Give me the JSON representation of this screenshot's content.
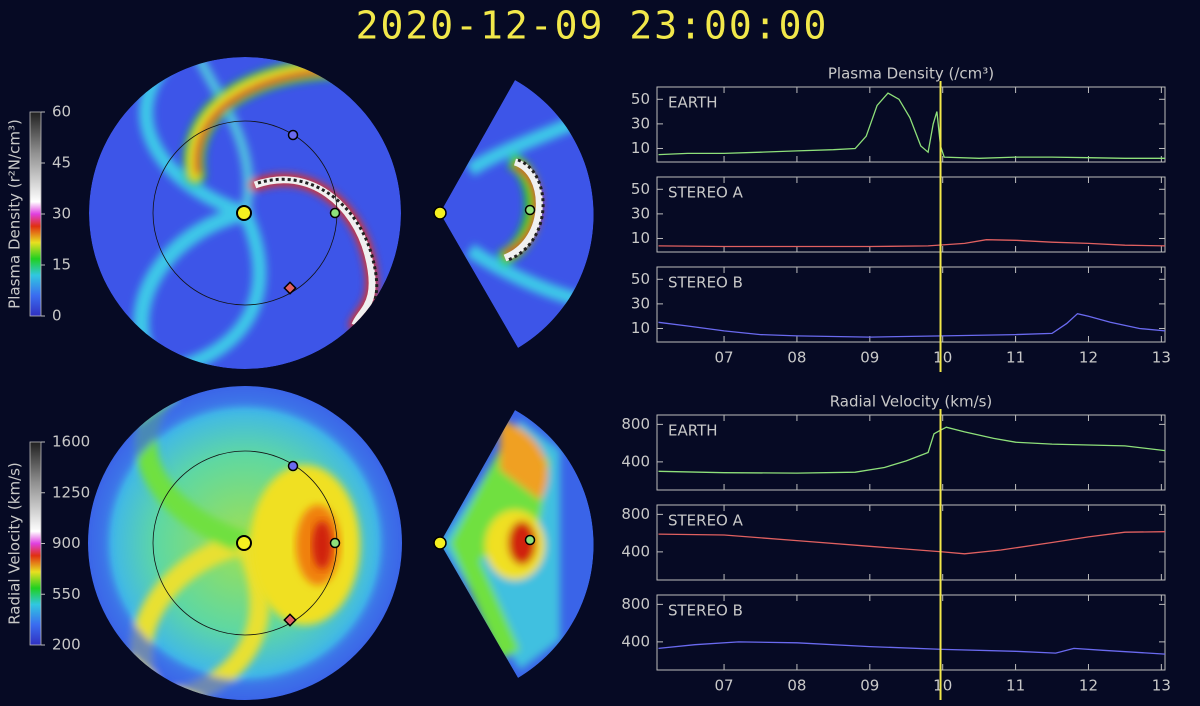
{
  "title": "2020-12-09 23:00:00",
  "chart_data": [
    {
      "type": "colorbar",
      "label": "Plasma Density (r²N/cm³)",
      "ylim": [
        0,
        60
      ],
      "yticks": [
        0,
        15,
        30,
        45,
        60
      ]
    },
    {
      "type": "colorbar",
      "label": "Radial Velocity (km/s)",
      "ylim": [
        200,
        1600
      ],
      "yticks": [
        200,
        550,
        900,
        1250,
        1600
      ]
    },
    {
      "type": "line",
      "title": "Plasma Density (/cm³)",
      "xlim": [
        6.08,
        13.05
      ],
      "xticks": [
        {
          "value": 7,
          "label": "07"
        },
        {
          "value": 8,
          "label": "08"
        },
        {
          "value": 9,
          "label": "09"
        },
        {
          "value": 10,
          "label": "10"
        },
        {
          "value": 11,
          "label": "11"
        },
        {
          "value": 12,
          "label": "12"
        },
        {
          "value": 13,
          "label": "13"
        }
      ],
      "ylim": [
        -1,
        60
      ],
      "yticks": [
        10,
        30,
        50
      ],
      "marker_x": 9.97,
      "marker_color": "#f2e84a",
      "series": [
        {
          "name": "EARTH",
          "color": "#8ee07a",
          "x": [
            6.1,
            6.5,
            7,
            7.5,
            8,
            8.5,
            8.8,
            8.95,
            9.1,
            9.25,
            9.4,
            9.55,
            9.7,
            9.8,
            9.87,
            9.92,
            9.97,
            10.02,
            10.5,
            11,
            11.5,
            12,
            12.5,
            13.05
          ],
          "values": [
            5,
            6,
            6,
            7,
            8,
            9,
            10,
            20,
            45,
            55,
            50,
            35,
            12,
            7,
            30,
            40,
            12,
            3,
            2,
            3,
            3,
            2.5,
            2,
            2
          ]
        },
        {
          "name": "STEREO A",
          "color": "#e06060",
          "x": [
            6.1,
            7,
            8,
            9,
            9.8,
            10.3,
            10.6,
            11,
            11.5,
            12,
            12.5,
            13.05
          ],
          "values": [
            4,
            3.5,
            3.5,
            3.5,
            4,
            6,
            9,
            8.5,
            7,
            6,
            4.5,
            4
          ]
        },
        {
          "name": "STEREO B",
          "color": "#6a6af0",
          "x": [
            6.1,
            6.5,
            7,
            7.5,
            8,
            9,
            10,
            11,
            11.5,
            11.7,
            11.85,
            12,
            12.3,
            12.7,
            13.05
          ],
          "values": [
            15,
            12,
            8,
            5,
            4,
            3,
            4,
            5,
            6,
            14,
            22,
            20,
            15,
            10,
            8
          ]
        }
      ]
    },
    {
      "type": "line",
      "title": "Radial Velocity (km/s)",
      "xlim": [
        6.08,
        13.05
      ],
      "xticks": [
        {
          "value": 7,
          "label": "07"
        },
        {
          "value": 8,
          "label": "08"
        },
        {
          "value": 9,
          "label": "09"
        },
        {
          "value": 10,
          "label": "10"
        },
        {
          "value": 11,
          "label": "11"
        },
        {
          "value": 12,
          "label": "12"
        },
        {
          "value": 13,
          "label": "13"
        }
      ],
      "ylim": [
        100,
        900
      ],
      "yticks": [
        400,
        800
      ],
      "marker_x": 9.97,
      "marker_color": "#f2e84a",
      "series": [
        {
          "name": "EARTH",
          "color": "#8ee07a",
          "x": [
            6.1,
            7,
            8,
            8.8,
            9.2,
            9.5,
            9.8,
            9.88,
            9.95,
            10.05,
            10.3,
            10.7,
            11,
            11.5,
            12,
            12.5,
            13.05
          ],
          "values": [
            300,
            285,
            280,
            290,
            340,
            410,
            500,
            700,
            730,
            770,
            720,
            650,
            610,
            590,
            580,
            570,
            520
          ]
        },
        {
          "name": "STEREO A",
          "color": "#e06060",
          "x": [
            6.1,
            7,
            8,
            9,
            10,
            10.3,
            10.8,
            11.5,
            12,
            12.5,
            13.05
          ],
          "values": [
            590,
            580,
            520,
            460,
            400,
            380,
            420,
            500,
            560,
            610,
            615
          ]
        },
        {
          "name": "STEREO B",
          "color": "#6a6af0",
          "x": [
            6.1,
            6.6,
            7.2,
            8,
            9,
            10,
            11,
            11.55,
            11.8,
            12.2,
            13.05
          ],
          "values": [
            330,
            370,
            400,
            390,
            350,
            320,
            300,
            280,
            330,
            310,
            270
          ]
        }
      ]
    }
  ]
}
